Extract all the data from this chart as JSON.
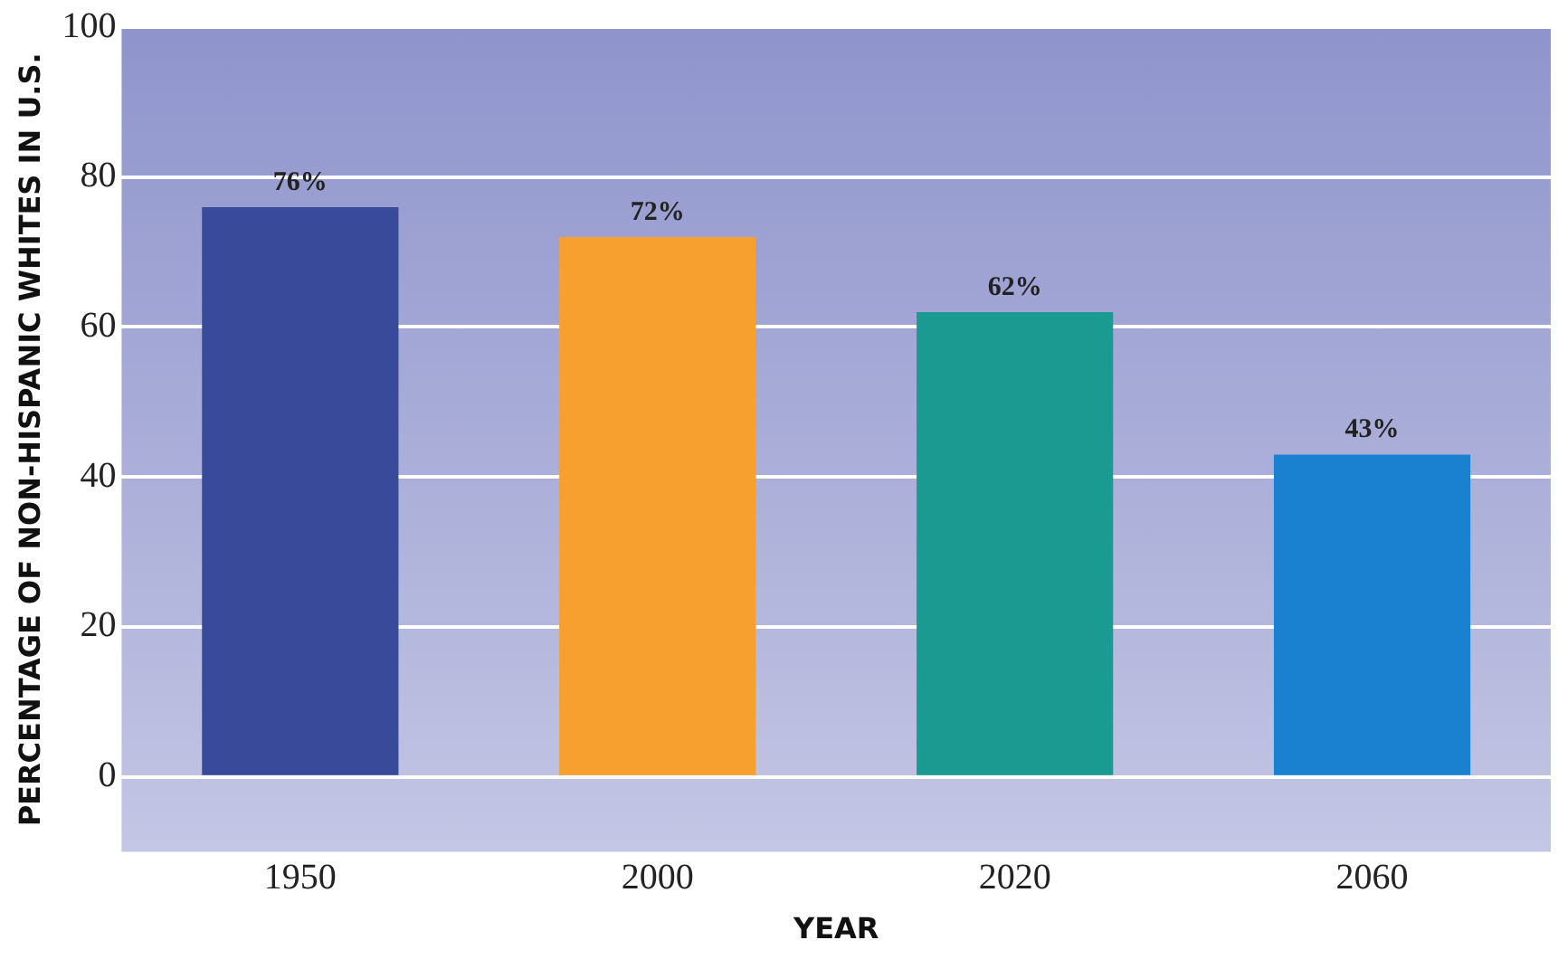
{
  "chart_data": {
    "type": "bar",
    "xlabel": "YEAR",
    "ylabel": "PERCENTAGE OF NON-HISPANIC WHITES IN U.S.",
    "categories": [
      "1950",
      "2000",
      "2020",
      "2060"
    ],
    "values": [
      76,
      72,
      62,
      43
    ],
    "colors": [
      "#3a4a9a",
      "#f7a030",
      "#1a9a90",
      "#1a80d0"
    ],
    "value_labels": [
      "76%",
      "72%",
      "62%",
      "43%"
    ],
    "ylim": [
      -10,
      100
    ],
    "yticks": [
      0,
      20,
      40,
      60,
      80,
      100
    ],
    "grid": "y"
  }
}
